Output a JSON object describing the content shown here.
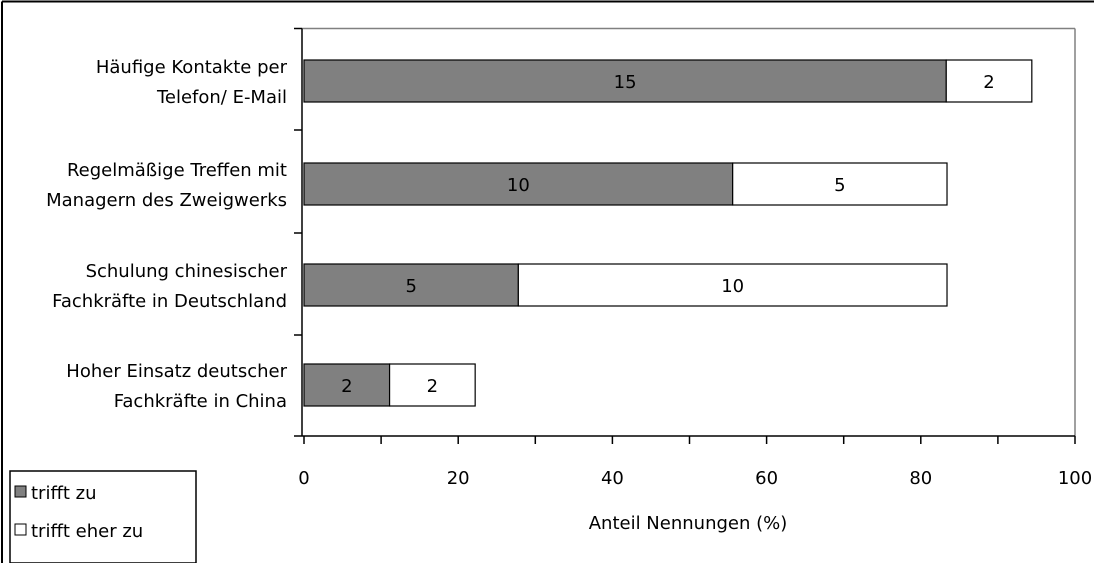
{
  "chart_data": {
    "type": "bar",
    "orientation": "horizontal",
    "stacked": true,
    "categories": [
      [
        "Häufige Kontakte per",
        "Telefon/ E-Mail"
      ],
      [
        "Regelmäßige Treffen mit",
        "Managern des Zweigwerks"
      ],
      [
        "Schulung chinesischer",
        "Fachkräfte in Deutschland"
      ],
      [
        "Hoher Einsatz deutscher",
        "Fachkräfte in China"
      ]
    ],
    "series": [
      {
        "name": "trifft zu",
        "color": "#808080",
        "values": [
          83.3,
          55.6,
          27.8,
          11.1
        ],
        "labels": [
          "15",
          "10",
          "5",
          "2"
        ]
      },
      {
        "name": "trifft eher zu",
        "color": "#ffffff",
        "values": [
          11.1,
          27.8,
          55.6,
          11.1
        ],
        "labels": [
          "2",
          "5",
          "10",
          "2"
        ]
      }
    ],
    "xlabel": "Anteil Nennungen (%)",
    "xlim": [
      0,
      100
    ],
    "xticks": [
      "0",
      "20",
      "40",
      "60",
      "80",
      "100"
    ],
    "grid": false,
    "legend_position": "bottom-left"
  }
}
